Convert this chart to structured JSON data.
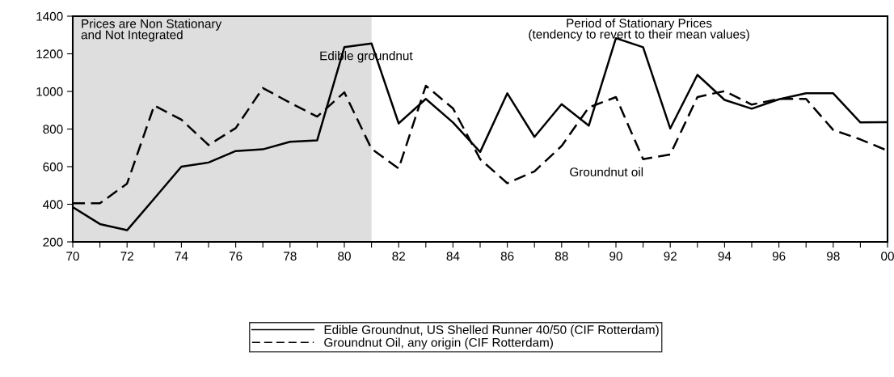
{
  "chart_data": {
    "type": "line",
    "x": [
      1970,
      1971,
      1972,
      1973,
      1974,
      1975,
      1976,
      1977,
      1978,
      1979,
      1980,
      1981,
      1982,
      1983,
      1984,
      1985,
      1986,
      1987,
      1988,
      1989,
      1990,
      1991,
      1992,
      1993,
      1994,
      1995,
      1996,
      1997,
      1998,
      1999,
      2000
    ],
    "series": [
      {
        "name": "Edible Groundnut, US Shelled Runner 40/50 (CIF Rotterdam)",
        "color": "#000000",
        "line_style": "solid",
        "values": [
          385,
          295,
          262,
          430,
          600,
          622,
          683,
          692,
          732,
          740,
          1235,
          1255,
          830,
          960,
          835,
          678,
          990,
          758,
          932,
          818,
          1283,
          1235,
          803,
          1088,
          955,
          908,
          958,
          990,
          990,
          835,
          837
        ]
      },
      {
        "name": "Groundnut Oil, any origin (CIF Rotterdam)",
        "color": "#000000",
        "line_style": "dashed",
        "values": [
          405,
          405,
          510,
          925,
          850,
          715,
          805,
          1018,
          940,
          866,
          995,
          695,
          590,
          1030,
          910,
          640,
          512,
          575,
          710,
          915,
          970,
          640,
          665,
          970,
          1002,
          930,
          960,
          960,
          795,
          745,
          685
        ]
      }
    ],
    "xlim": [
      1970,
      2000
    ],
    "xticks": [
      {
        "value": 1970,
        "label": "70"
      },
      {
        "value": 1971,
        "label": null
      },
      {
        "value": 1972,
        "label": "72"
      },
      {
        "value": 1973,
        "label": null
      },
      {
        "value": 1974,
        "label": "74"
      },
      {
        "value": 1975,
        "label": null
      },
      {
        "value": 1976,
        "label": "76"
      },
      {
        "value": 1977,
        "label": null
      },
      {
        "value": 1978,
        "label": "78"
      },
      {
        "value": 1979,
        "label": null
      },
      {
        "value": 1980,
        "label": "80"
      },
      {
        "value": 1981,
        "label": null
      },
      {
        "value": 1982,
        "label": "82"
      },
      {
        "value": 1983,
        "label": null
      },
      {
        "value": 1984,
        "label": "84"
      },
      {
        "value": 1985,
        "label": null
      },
      {
        "value": 1986,
        "label": "86"
      },
      {
        "value": 1987,
        "label": null
      },
      {
        "value": 1988,
        "label": "88"
      },
      {
        "value": 1989,
        "label": null
      },
      {
        "value": 1990,
        "label": "90"
      },
      {
        "value": 1991,
        "label": null
      },
      {
        "value": 1992,
        "label": "92"
      },
      {
        "value": 1993,
        "label": null
      },
      {
        "value": 1994,
        "label": "94"
      },
      {
        "value": 1995,
        "label": null
      },
      {
        "value": 1996,
        "label": "96"
      },
      {
        "value": 1997,
        "label": null
      },
      {
        "value": 1998,
        "label": "98"
      },
      {
        "value": 1999,
        "label": null
      },
      {
        "value": 2000,
        "label": "00"
      }
    ],
    "ylim": [
      200,
      1400
    ],
    "yticks": [
      200,
      400,
      600,
      800,
      1000,
      1200,
      1400
    ],
    "bands": [
      {
        "axis": "x",
        "from": 1970,
        "to": 1981,
        "label": "Prices are Non Stationary\nand Not Integrated",
        "color": "#dedede"
      }
    ],
    "annotations": [
      "Period of Stationary Prices\n(tendency to revert to their mean values)",
      "Edible groundnut",
      "Groundnut oil"
    ],
    "grid": false,
    "legend": "bottom"
  }
}
